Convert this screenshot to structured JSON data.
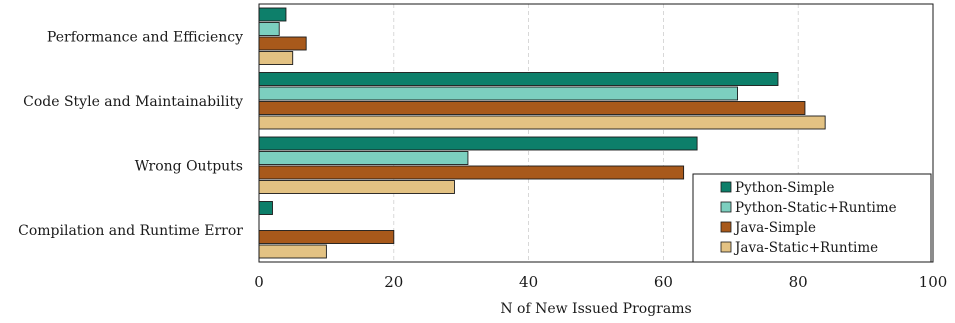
{
  "chart_data": {
    "type": "bar",
    "orientation": "horizontal",
    "categories": [
      "Performance and Efficiency",
      "Code Style and Maintainability",
      "Wrong Outputs",
      "Compilation and Runtime Error"
    ],
    "series": [
      {
        "name": "Python-Simple",
        "color": "#0d7f6a",
        "values": [
          4,
          77,
          65,
          2
        ]
      },
      {
        "name": "Python-Static+Runtime",
        "color": "#7ccfbf",
        "values": [
          3,
          71,
          31,
          0
        ]
      },
      {
        "name": "Java-Simple",
        "color": "#a8591b",
        "values": [
          7,
          81,
          63,
          20
        ]
      },
      {
        "name": "Java-Static+Runtime",
        "color": "#e3c283",
        "values": [
          5,
          84,
          29,
          10
        ]
      }
    ],
    "xlabel": "N of New Issued Programs",
    "ylabel": "",
    "xlim": [
      0,
      100
    ],
    "xticks": [
      0,
      20,
      40,
      60,
      80,
      100
    ],
    "grid": "vertical-dashed",
    "legend_position": "bottom-right"
  }
}
